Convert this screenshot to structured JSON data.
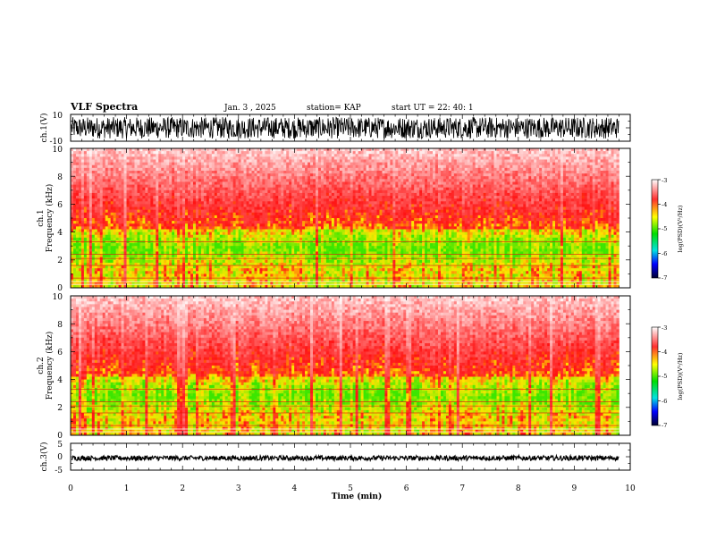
{
  "header": {
    "title": "VLF Spectra",
    "date": "Jan. 3 , 2025",
    "station": "station= KAP",
    "start": "start UT = 22: 40: 1"
  },
  "chart_data": [
    {
      "name": "ch1-waveform",
      "type": "line",
      "ylabel": "ch.1(V)",
      "ylim": [
        -10,
        10
      ],
      "yticks": [
        "10",
        "-10"
      ],
      "xlim": [
        0,
        10
      ],
      "data_end_min": 9.8,
      "amplitude_range": [
        -8,
        8
      ]
    },
    {
      "name": "ch1-spectrogram",
      "type": "heatmap",
      "ylabel_line1": "ch.1",
      "ylabel_line2": "Frequency (kHz)",
      "ylim": [
        0,
        10
      ],
      "yticks": [
        "0",
        "2",
        "4",
        "6",
        "8",
        "10"
      ],
      "xlim": [
        0,
        10
      ],
      "data_end_min": 9.8,
      "colorbar": {
        "label": "log(PSD)(V²/Hz)",
        "range": [
          -7,
          -3
        ],
        "ticks": [
          "-3",
          "-4",
          "-5",
          "-6",
          "-7"
        ]
      }
    },
    {
      "name": "ch2-spectrogram",
      "type": "heatmap",
      "ylabel_line1": "ch.2",
      "ylabel_line2": "Frequency (kHz)",
      "ylim": [
        0,
        10
      ],
      "yticks": [
        "0",
        "2",
        "4",
        "6",
        "8",
        "10"
      ],
      "xlim": [
        0,
        10
      ],
      "data_end_min": 9.8,
      "colorbar": {
        "label": "log(PSD)(V²/Hz)",
        "range": [
          -7,
          -3
        ],
        "ticks": [
          "-3",
          "-4",
          "-5",
          "-6",
          "-7"
        ]
      }
    },
    {
      "name": "ch3-waveform",
      "type": "line",
      "ylabel": "ch.3(V)",
      "ylim": [
        -5,
        5
      ],
      "yticks": [
        "5",
        "0",
        "-5"
      ],
      "xlim": [
        0,
        10
      ],
      "xticks": [
        "0",
        "1",
        "2",
        "3",
        "4",
        "5",
        "6",
        "7",
        "8",
        "9",
        "10"
      ],
      "xlabel": "Time (min)",
      "data_end_min": 9.8,
      "offset_v": -0.5
    }
  ]
}
